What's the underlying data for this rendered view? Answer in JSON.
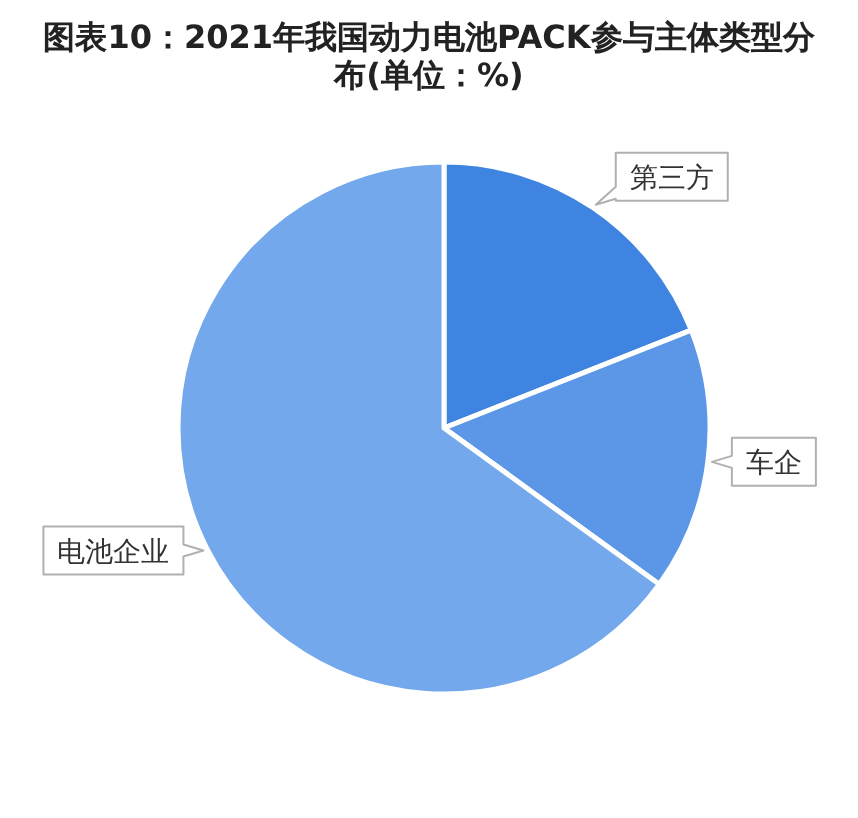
{
  "chart_data": {
    "type": "pie",
    "title": "图表10：2021年我国动力电池PACK参与主体类型分布(单位：%)",
    "categories": [
      "第三方",
      "车企",
      "电池企业"
    ],
    "values": [
      19,
      16,
      65
    ],
    "colors": [
      "#3f84e0",
      "#5b97e6",
      "#74a8ec"
    ]
  }
}
